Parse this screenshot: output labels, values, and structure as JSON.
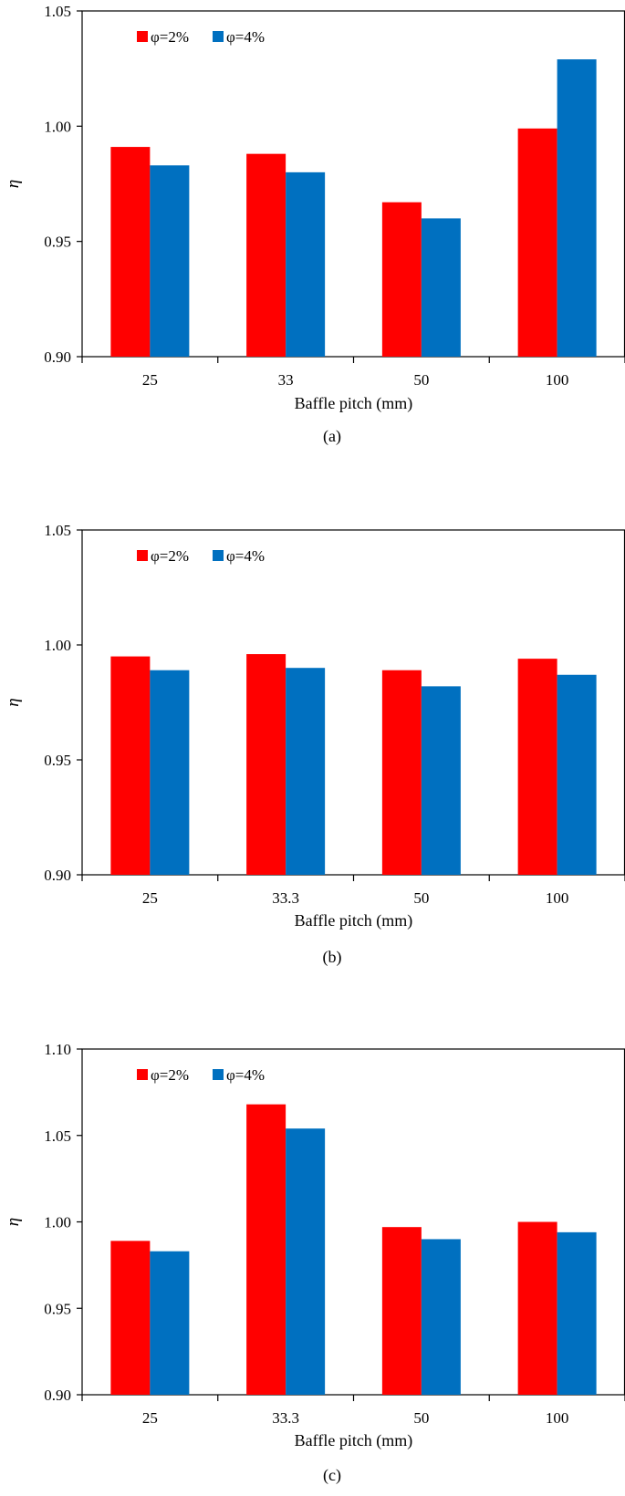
{
  "figure": {
    "colors": {
      "phi2": "#ff0000",
      "phi4": "#0070c0",
      "axis": "#000000"
    }
  },
  "chart_data": [
    {
      "type": "bar",
      "caption": "(a)",
      "categories": [
        "25",
        "33",
        "50",
        "100"
      ],
      "series": [
        {
          "name": "φ=2%",
          "values": [
            0.991,
            0.988,
            0.967,
            0.999
          ]
        },
        {
          "name": "φ=4%",
          "values": [
            0.983,
            0.98,
            0.96,
            1.029
          ]
        }
      ],
      "xlabel": "Baffle pitch (mm)",
      "ylabel": "η",
      "ylim": [
        0.9,
        1.05
      ],
      "yticks": [
        "0.90",
        "0.95",
        "1.00",
        "1.05"
      ],
      "legend": "top-left",
      "grid": false
    },
    {
      "type": "bar",
      "caption": "(b)",
      "categories": [
        "25",
        "33.3",
        "50",
        "100"
      ],
      "series": [
        {
          "name": "φ=2%",
          "values": [
            0.995,
            0.996,
            0.989,
            0.994
          ]
        },
        {
          "name": "φ=4%",
          "values": [
            0.989,
            0.99,
            0.982,
            0.987
          ]
        }
      ],
      "xlabel": "Baffle pitch (mm)",
      "ylabel": "η",
      "ylim": [
        0.9,
        1.05
      ],
      "yticks": [
        "0.90",
        "0.95",
        "1.00",
        "1.05"
      ],
      "legend": "top-left",
      "grid": false
    },
    {
      "type": "bar",
      "caption": "(c)",
      "categories": [
        "25",
        "33.3",
        "50",
        "100"
      ],
      "series": [
        {
          "name": "φ=2%",
          "values": [
            0.989,
            1.068,
            0.997,
            1.0
          ]
        },
        {
          "name": "φ=4%",
          "values": [
            0.983,
            1.054,
            0.99,
            0.994
          ]
        }
      ],
      "xlabel": "Baffle pitch (mm)",
      "ylabel": "η",
      "ylim": [
        0.9,
        1.1
      ],
      "yticks": [
        "0.90",
        "0.95",
        "1.00",
        "1.05",
        "1.10"
      ],
      "legend": "top-left",
      "grid": false
    }
  ]
}
